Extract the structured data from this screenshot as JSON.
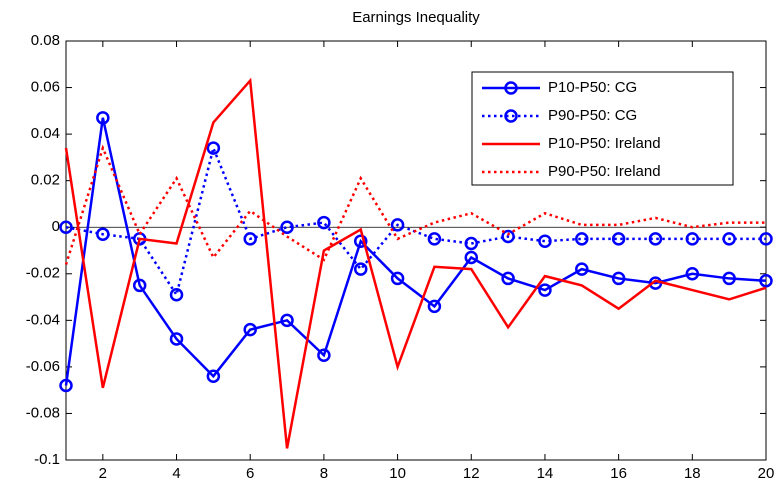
{
  "chart_data": {
    "type": "line",
    "title": "Earnings Inequality",
    "x": [
      1,
      2,
      3,
      4,
      5,
      6,
      7,
      8,
      9,
      10,
      11,
      12,
      13,
      14,
      15,
      16,
      17,
      18,
      19,
      20
    ],
    "xlim": [
      1,
      20
    ],
    "xticks": [
      2,
      4,
      6,
      8,
      10,
      12,
      14,
      16,
      18,
      20
    ],
    "ylim": [
      -0.1,
      0.08
    ],
    "yticks": [
      -0.1,
      -0.08,
      -0.06,
      -0.04,
      -0.02,
      0,
      0.02,
      0.04,
      0.06,
      0.08
    ],
    "reference_line": 0,
    "legend": "upper right",
    "series": [
      {
        "name": "P10-P50: CG",
        "color": "#0000ff",
        "linestyle": "solid",
        "marker": "circle",
        "values": [
          -0.068,
          0.047,
          -0.025,
          -0.048,
          -0.064,
          -0.044,
          -0.04,
          -0.055,
          -0.006,
          -0.022,
          -0.034,
          -0.013,
          -0.022,
          -0.027,
          -0.018,
          -0.022,
          -0.024,
          -0.02,
          -0.022,
          -0.023
        ]
      },
      {
        "name": "P90-P50: CG",
        "color": "#0000ff",
        "linestyle": "dotted",
        "marker": "circle",
        "values": [
          0.0,
          -0.003,
          -0.005,
          -0.029,
          0.034,
          -0.005,
          0.0,
          0.002,
          -0.018,
          0.001,
          -0.005,
          -0.007,
          -0.004,
          -0.006,
          -0.005,
          -0.005,
          -0.005,
          -0.005,
          -0.005,
          -0.005
        ]
      },
      {
        "name": "P10-P50: Ireland",
        "color": "#ff0000",
        "linestyle": "solid",
        "marker": "none",
        "values": [
          0.034,
          -0.069,
          -0.005,
          -0.007,
          0.045,
          0.063,
          -0.095,
          -0.01,
          -0.001,
          -0.06,
          -0.017,
          -0.018,
          -0.043,
          -0.021,
          -0.025,
          -0.035,
          -0.023,
          -0.027,
          -0.031,
          -0.026
        ]
      },
      {
        "name": "P90-P50: Ireland",
        "color": "#ff0000",
        "linestyle": "dotted",
        "marker": "none",
        "values": [
          -0.016,
          0.034,
          -0.003,
          0.021,
          -0.013,
          0.007,
          -0.004,
          -0.014,
          0.021,
          -0.005,
          0.002,
          0.006,
          -0.003,
          0.006,
          0.001,
          0.001,
          0.004,
          0.0,
          0.002,
          0.002
        ]
      }
    ]
  }
}
